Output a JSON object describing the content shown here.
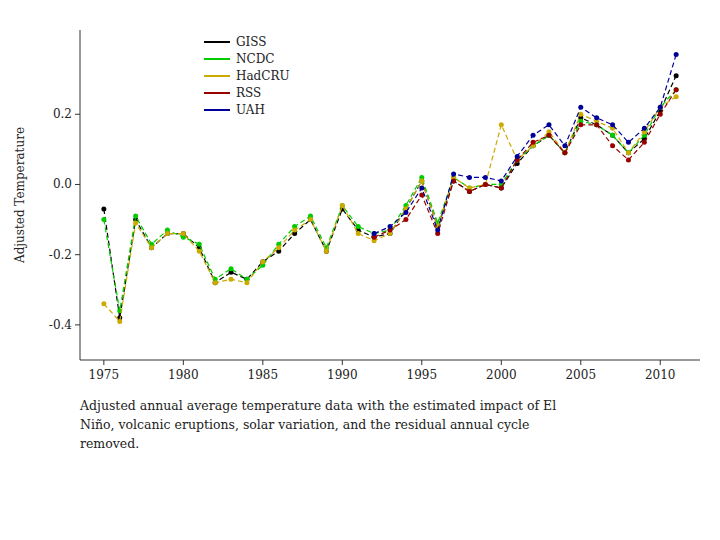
{
  "chart_data": {
    "type": "line",
    "ylabel": "Adjusted Temperature",
    "caption": "Adjusted annual average temperature data with the estimated impact of El\nNiño, volcanic eruptions, solar variation, and the residual annual cycle\nremoved.",
    "x": [
      1975,
      1976,
      1977,
      1978,
      1979,
      1980,
      1981,
      1982,
      1983,
      1984,
      1985,
      1986,
      1987,
      1988,
      1989,
      1990,
      1991,
      1992,
      1993,
      1994,
      1995,
      1996,
      1997,
      1998,
      1999,
      2000,
      2001,
      2002,
      2003,
      2004,
      2005,
      2006,
      2007,
      2008,
      2009,
      2010,
      2011
    ],
    "series": [
      {
        "name": "GISS",
        "color": "#000000",
        "values": [
          -0.07,
          -0.38,
          -0.1,
          -0.18,
          -0.14,
          -0.14,
          -0.18,
          -0.28,
          -0.25,
          -0.27,
          -0.22,
          -0.19,
          -0.14,
          -0.1,
          -0.19,
          -0.07,
          -0.13,
          -0.15,
          -0.14,
          -0.07,
          0.01,
          -0.12,
          0.01,
          -0.02,
          0.0,
          -0.01,
          0.06,
          0.11,
          0.14,
          0.09,
          0.19,
          0.17,
          0.14,
          0.09,
          0.13,
          0.21,
          0.31
        ]
      },
      {
        "name": "NCDC",
        "color": "#00cc00",
        "values": [
          -0.1,
          -0.36,
          -0.09,
          -0.17,
          -0.13,
          -0.15,
          -0.17,
          -0.27,
          -0.24,
          -0.27,
          -0.23,
          -0.17,
          -0.12,
          -0.09,
          -0.18,
          -0.06,
          -0.12,
          -0.14,
          -0.13,
          -0.06,
          0.02,
          -0.11,
          0.02,
          -0.01,
          0.0,
          0.0,
          0.07,
          0.11,
          0.14,
          0.09,
          0.18,
          0.17,
          0.14,
          0.09,
          0.14,
          0.22,
          0.27
        ]
      },
      {
        "name": "HadCRU",
        "color": "#ccaa00",
        "values": [
          -0.34,
          -0.39,
          -0.11,
          -0.18,
          -0.14,
          -0.14,
          -0.19,
          -0.28,
          -0.27,
          -0.28,
          -0.22,
          -0.18,
          -0.13,
          -0.1,
          -0.19,
          -0.06,
          -0.14,
          -0.16,
          -0.14,
          -0.07,
          0.01,
          -0.12,
          0.02,
          -0.01,
          0.0,
          0.17,
          0.07,
          0.11,
          0.15,
          0.09,
          0.2,
          0.18,
          0.16,
          0.09,
          0.15,
          0.22,
          0.25
        ]
      },
      {
        "name": "RSS",
        "color": "#990000",
        "values": [
          null,
          null,
          null,
          null,
          null,
          null,
          null,
          null,
          null,
          null,
          null,
          null,
          null,
          null,
          null,
          null,
          null,
          -0.15,
          -0.13,
          -0.1,
          -0.03,
          -0.14,
          0.01,
          -0.02,
          0.0,
          -0.01,
          0.07,
          0.12,
          0.14,
          0.09,
          0.17,
          0.17,
          0.11,
          0.07,
          0.12,
          0.2,
          0.27
        ]
      },
      {
        "name": "UAH",
        "color": "#000099",
        "values": [
          null,
          null,
          null,
          null,
          null,
          null,
          null,
          null,
          null,
          null,
          null,
          null,
          null,
          null,
          null,
          null,
          null,
          -0.14,
          -0.12,
          -0.08,
          -0.01,
          -0.13,
          0.03,
          0.02,
          0.02,
          0.01,
          0.08,
          0.14,
          0.17,
          0.11,
          0.22,
          0.19,
          0.17,
          0.12,
          0.16,
          0.22,
          0.37
        ]
      }
    ],
    "xlim": [
      1973.5,
      2012.5
    ],
    "ylim": [
      -0.5,
      0.44
    ],
    "xticks": [
      1975,
      1980,
      1985,
      1990,
      1995,
      2000,
      2005,
      2010
    ],
    "yticks": [
      -0.4,
      -0.2,
      {
        "value": 0.0,
        "label": "0.0"
      },
      0.2
    ],
    "line_style": "dashed",
    "marker": "circle",
    "legend": "upper left",
    "grid": false
  }
}
